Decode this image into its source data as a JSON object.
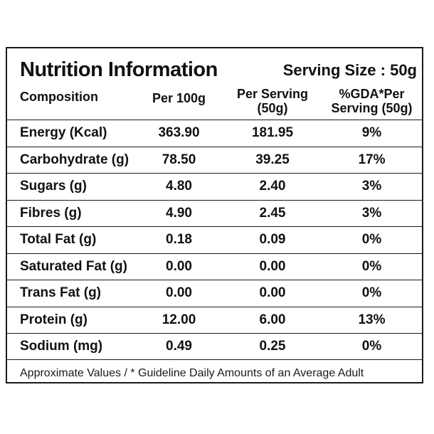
{
  "title": "Nutrition Information",
  "serving_size": "Serving Size : 50g",
  "headers": {
    "composition": "Composition",
    "per_100g": "Per 100g",
    "per_serving_line1": "Per Serving",
    "per_serving_line2": "(50g)",
    "gda_line1": "%GDA*Per",
    "gda_line2": "Serving (50g)"
  },
  "rows": [
    {
      "name": "Energy (Kcal)",
      "per_100g": "363.90",
      "per_serving": "181.95",
      "gda": "9%"
    },
    {
      "name": "Carbohydrate (g)",
      "per_100g": "78.50",
      "per_serving": "39.25",
      "gda": "17%"
    },
    {
      "name": "Sugars (g)",
      "per_100g": "4.80",
      "per_serving": "2.40",
      "gda": "3%"
    },
    {
      "name": "Fibres (g)",
      "per_100g": "4.90",
      "per_serving": "2.45",
      "gda": "3%"
    },
    {
      "name": "Total Fat (g)",
      "per_100g": "0.18",
      "per_serving": "0.09",
      "gda": "0%"
    },
    {
      "name": "Saturated Fat (g)",
      "per_100g": "0.00",
      "per_serving": "0.00",
      "gda": "0%"
    },
    {
      "name": "Trans Fat (g)",
      "per_100g": "0.00",
      "per_serving": "0.00",
      "gda": "0%"
    },
    {
      "name": "Protein (g)",
      "per_100g": "12.00",
      "per_serving": "6.00",
      "gda": "13%"
    },
    {
      "name": "Sodium (mg)",
      "per_100g": "0.49",
      "per_serving": "0.25",
      "gda": "0%"
    }
  ],
  "footer": "Approximate Values / * Guideline Daily Amounts of an Average Adult"
}
